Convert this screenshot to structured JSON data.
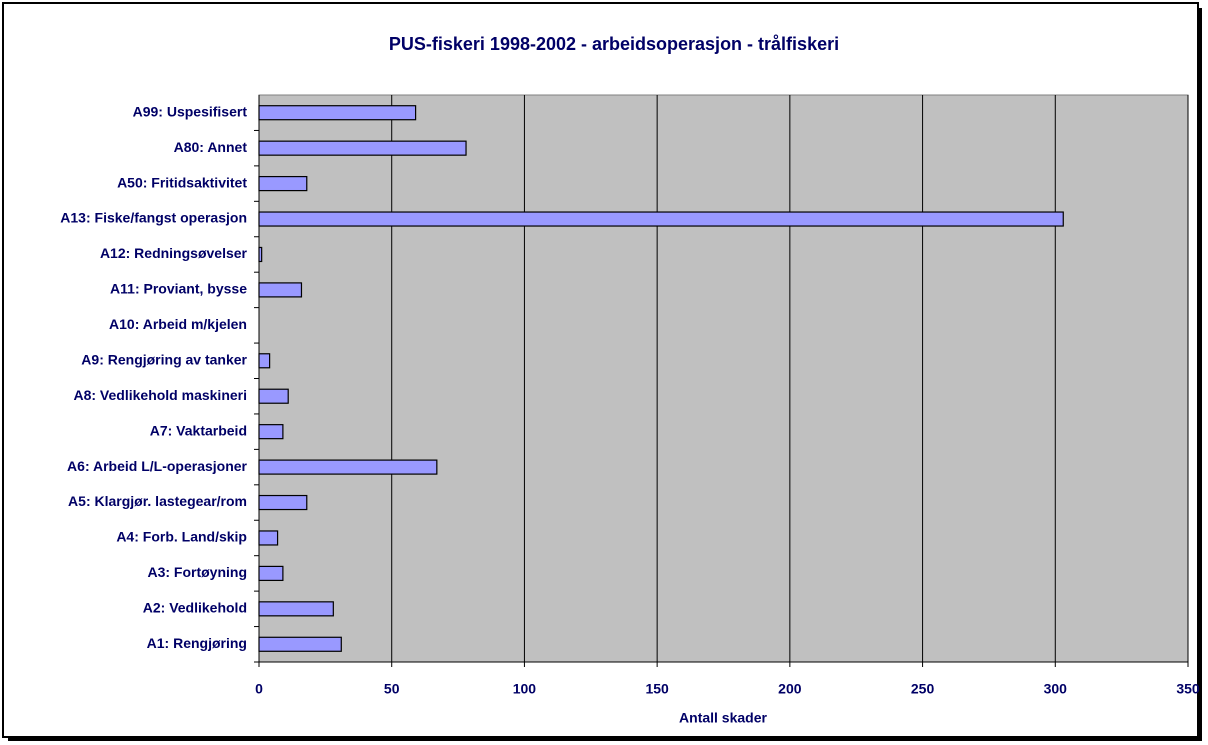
{
  "chart_data": {
    "type": "bar",
    "orientation": "horizontal",
    "title": "PUS-fiskeri 1998-2002 - arbeidsoperasjon - trålfiskeri",
    "x_label": "Antall skader",
    "categories": [
      "A1: Rengjøring",
      "A2: Vedlikehold",
      "A3: Fortøyning",
      "A4: Forb. Land/skip",
      "A5: Klargjør. lastegear/rom",
      "A6: Arbeid L/L-operasjoner",
      "A7: Vaktarbeid",
      "A8: Vedlikehold maskineri",
      "A9: Rengjøring av tanker",
      "A10: Arbeid m/kjelen",
      "A11: Proviant, bysse",
      "A12: Redningsøvelser",
      "A13: Fiske/fangst operasjon",
      "A50: Fritidsaktivitet",
      "A80: Annet",
      "A99: Uspesifisert"
    ],
    "values": [
      31,
      28,
      9,
      7,
      18,
      67,
      9,
      11,
      4,
      0,
      16,
      1,
      303,
      18,
      78,
      59
    ],
    "color": "#9999ff",
    "background": "#c0c0c0",
    "xlim": [
      0,
      350
    ],
    "xticks": [
      0,
      50,
      100,
      150,
      200,
      250,
      300,
      350
    ],
    "grid": true
  }
}
